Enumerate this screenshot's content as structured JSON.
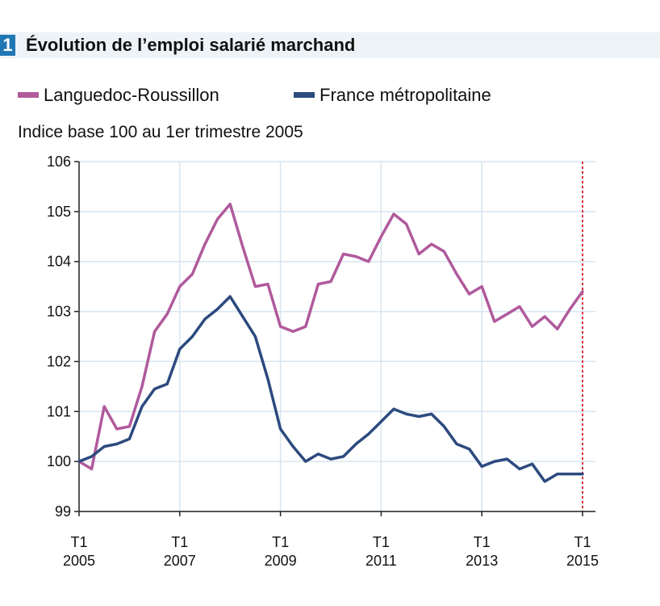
{
  "header": {
    "number": "1",
    "title": "Évolution de l’emploi salarié marchand"
  },
  "subtitle": "Indice base 100 au 1er trimestre 2005",
  "chart_data": {
    "type": "line",
    "title": "Évolution de l’emploi salarié marchand",
    "ylabel": "Indice base 100 au 1er trimestre 2005",
    "ylim": [
      99,
      106
    ],
    "xlim": [
      2005.0,
      2015.0
    ],
    "yticks": [
      "99",
      "100",
      "101",
      "102",
      "103",
      "104",
      "105",
      "106"
    ],
    "xticks": [
      {
        "top": "T1",
        "bottom": "2005",
        "x": 2005
      },
      {
        "top": "T1",
        "bottom": "2007",
        "x": 2007
      },
      {
        "top": "T1",
        "bottom": "2009",
        "x": 2009
      },
      {
        "top": "T1",
        "bottom": "2011",
        "x": 2011
      },
      {
        "top": "T1",
        "bottom": "2013",
        "x": 2013
      },
      {
        "top": "T1",
        "bottom": "2015",
        "x": 2015
      }
    ],
    "grid": true,
    "legend_position": "top",
    "reference_line": {
      "x": 2015.0,
      "color": "#e8303a",
      "style": "dotted"
    },
    "series": [
      {
        "name": "Languedoc-Roussillon",
        "color": "#b05a9c",
        "x": [
          2005.0,
          2005.25,
          2005.5,
          2005.75,
          2006.0,
          2006.25,
          2006.5,
          2006.75,
          2007.0,
          2007.25,
          2007.5,
          2007.75,
          2008.0,
          2008.25,
          2008.5,
          2008.75,
          2009.0,
          2009.25,
          2009.5,
          2009.75,
          2010.0,
          2010.25,
          2010.5,
          2010.75,
          2011.0,
          2011.25,
          2011.5,
          2011.75,
          2012.0,
          2012.25,
          2012.5,
          2012.75,
          2013.0,
          2013.25,
          2013.5,
          2013.75,
          2014.0,
          2014.25,
          2014.5,
          2014.75,
          2015.0
        ],
        "values": [
          100.0,
          99.85,
          101.1,
          100.65,
          100.7,
          101.5,
          102.6,
          102.95,
          103.5,
          103.75,
          104.35,
          104.85,
          105.15,
          104.3,
          103.5,
          103.55,
          102.7,
          102.6,
          102.7,
          103.55,
          103.6,
          104.15,
          104.1,
          104.0,
          104.5,
          104.95,
          104.75,
          104.15,
          104.35,
          104.2,
          103.75,
          103.35,
          103.5,
          102.8,
          102.95,
          103.1,
          102.7,
          102.9,
          102.65,
          103.05,
          103.4
        ]
      },
      {
        "name": "France métropolitaine",
        "color": "#2c4a7e",
        "x": [
          2005.0,
          2005.25,
          2005.5,
          2005.75,
          2006.0,
          2006.25,
          2006.5,
          2006.75,
          2007.0,
          2007.25,
          2007.5,
          2007.75,
          2008.0,
          2008.25,
          2008.5,
          2008.75,
          2009.0,
          2009.25,
          2009.5,
          2009.75,
          2010.0,
          2010.25,
          2010.5,
          2010.75,
          2011.0,
          2011.25,
          2011.5,
          2011.75,
          2012.0,
          2012.25,
          2012.5,
          2012.75,
          2013.0,
          2013.25,
          2013.5,
          2013.75,
          2014.0,
          2014.25,
          2014.5,
          2014.75,
          2015.0
        ],
        "values": [
          100.0,
          100.1,
          100.3,
          100.35,
          100.45,
          101.1,
          101.45,
          101.55,
          102.25,
          102.5,
          102.85,
          103.05,
          103.3,
          102.9,
          102.5,
          101.65,
          100.65,
          100.3,
          100.0,
          100.15,
          100.05,
          100.1,
          100.35,
          100.55,
          100.8,
          101.05,
          100.95,
          100.9,
          100.95,
          100.7,
          100.35,
          100.25,
          99.9,
          100.0,
          100.05,
          99.85,
          99.95,
          99.6,
          99.75,
          99.75,
          99.75
        ]
      }
    ]
  }
}
